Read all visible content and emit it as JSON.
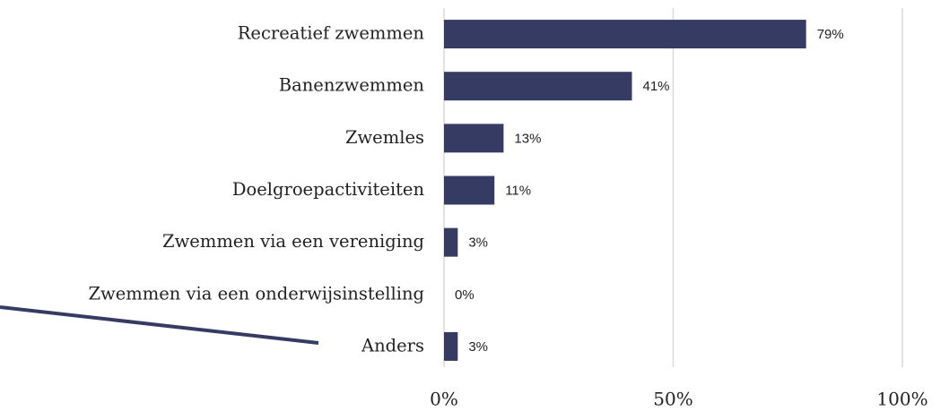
{
  "chart_data": {
    "type": "barh",
    "categories": [
      "Recreatief zwemmen",
      "Banenzwemmen",
      "Zwemles",
      "Doelgroepactiviteiten",
      "Zwemmen via een vereniging",
      "Zwemmen via een onderwijsinstelling",
      "Anders"
    ],
    "values": [
      79,
      41,
      13,
      11,
      3,
      0,
      3
    ],
    "value_labels": [
      "79%",
      "41%",
      "13%",
      "11%",
      "3%",
      "0%",
      "3%"
    ],
    "color": "#363b64",
    "xlim": [
      0,
      100
    ],
    "xticks": [
      {
        "value": 0,
        "label": "0%"
      },
      {
        "value": 50,
        "label": "50%"
      },
      {
        "value": 100,
        "label": "100%"
      }
    ],
    "grid": true
  }
}
